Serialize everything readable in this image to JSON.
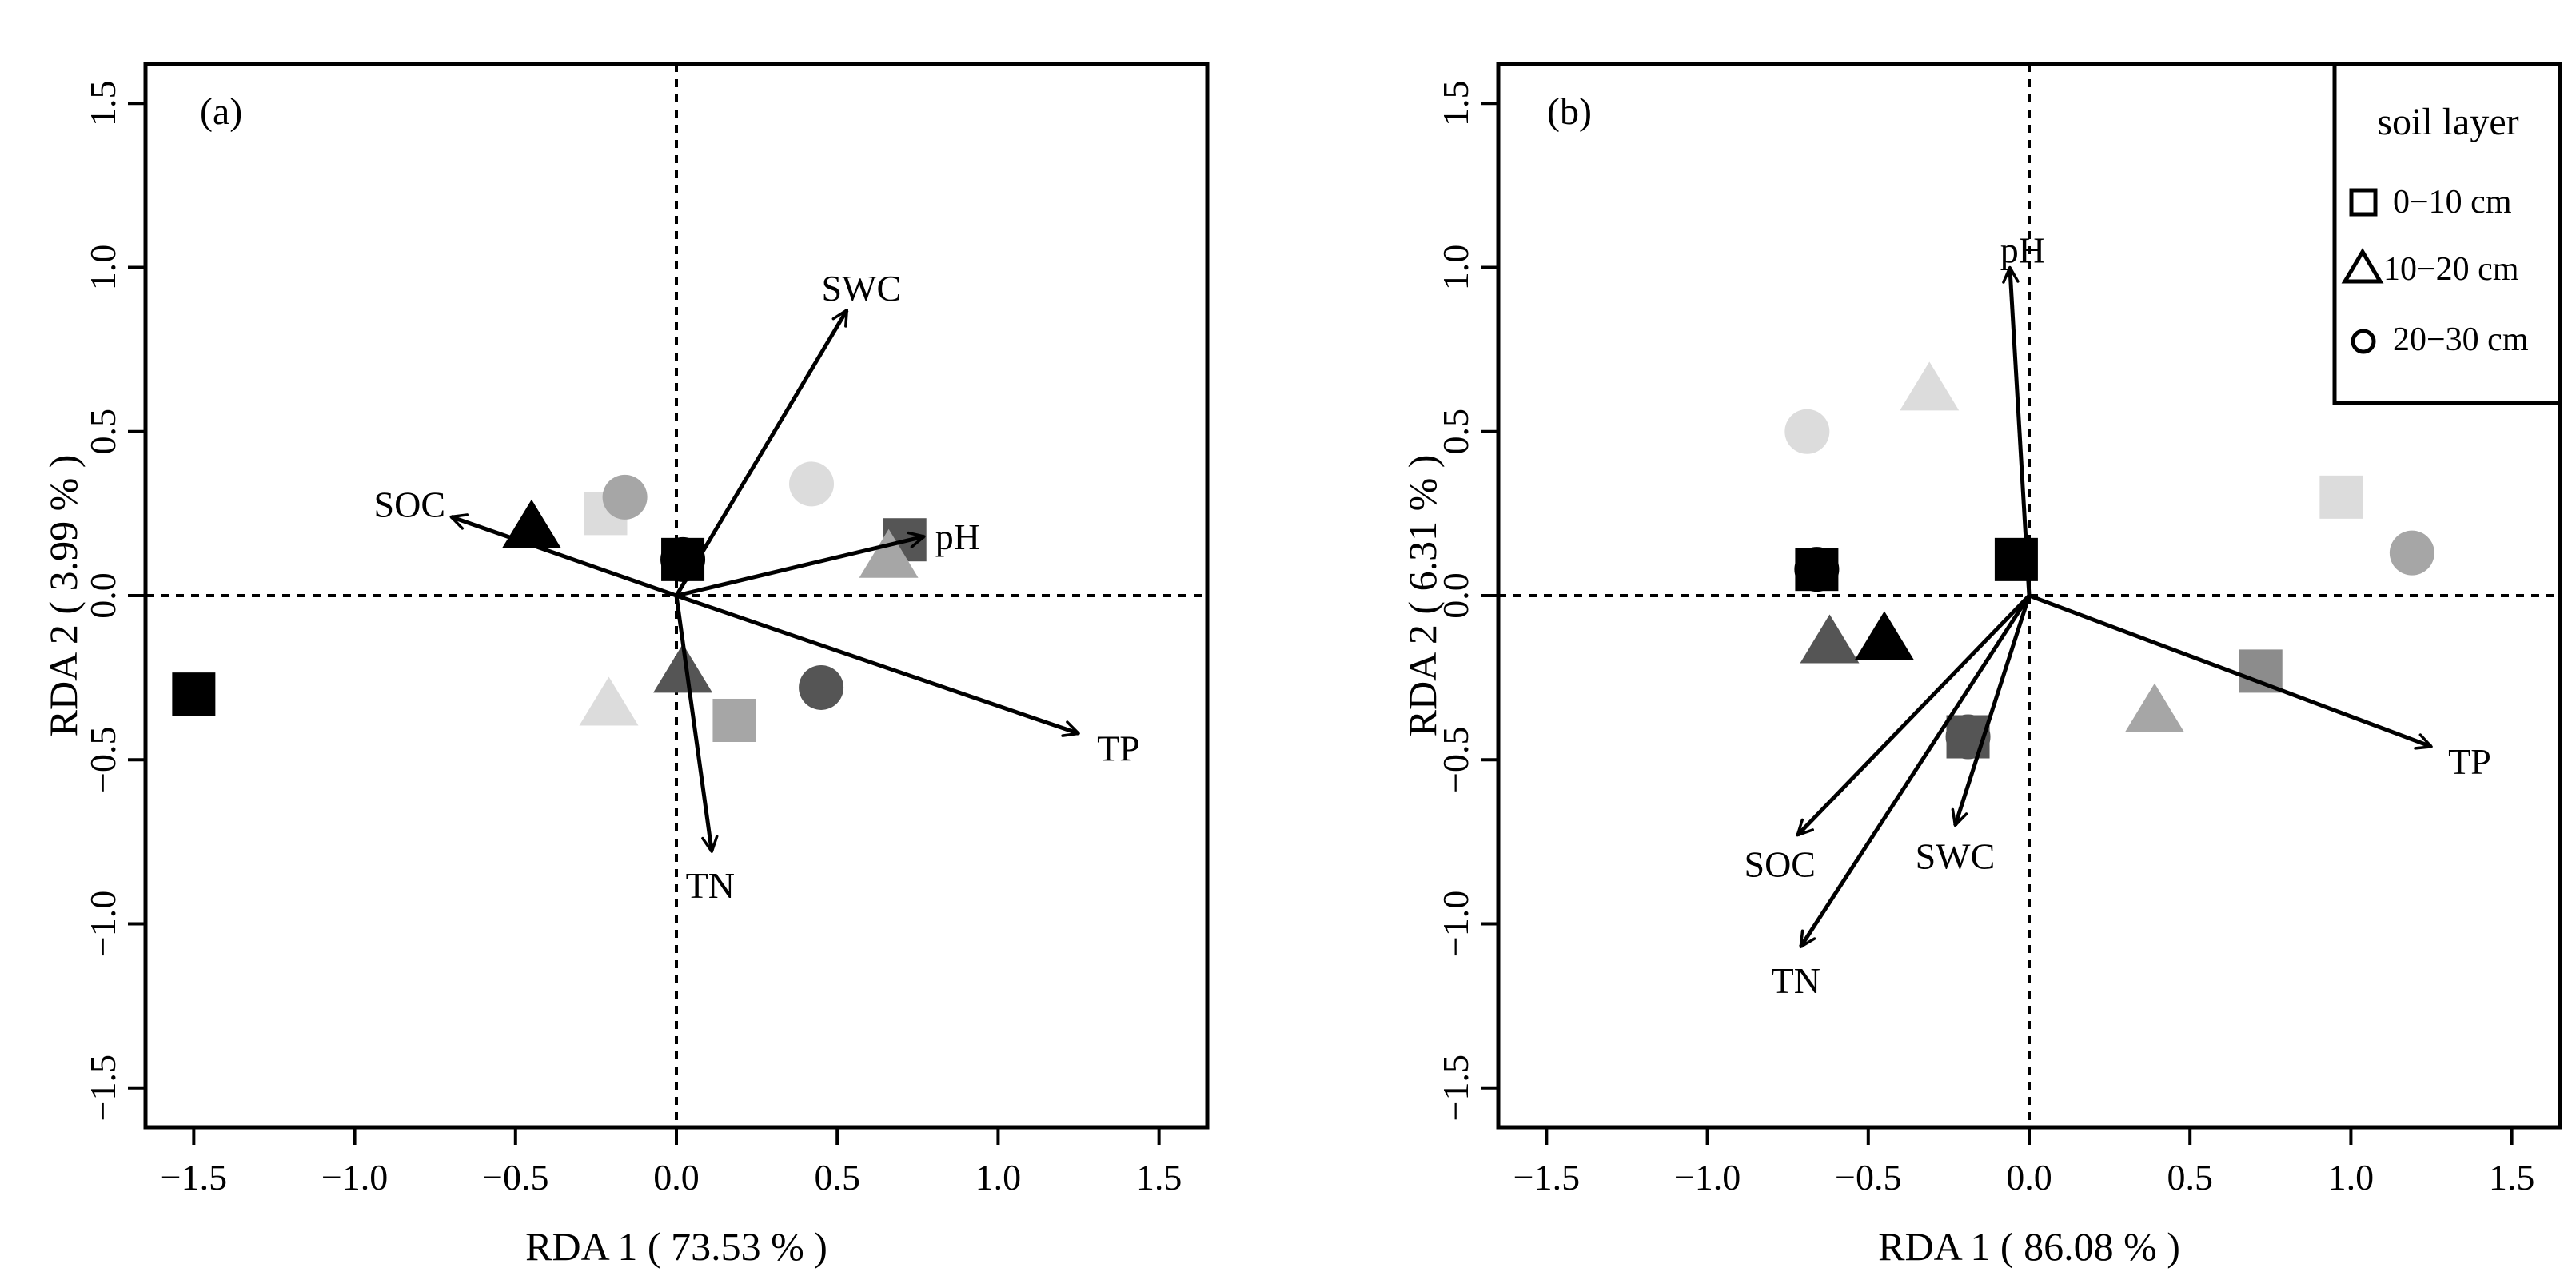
{
  "colors": {
    "black": "#000000",
    "dark_gray": "#555555",
    "mid_gray": "#8c8c8c",
    "light_gray": "#a6a6a6",
    "pale_gray": "#dcdcdc"
  },
  "legend": {
    "title": "soil layer",
    "items": [
      {
        "label": "0−10 cm",
        "shape": "square"
      },
      {
        "label": "10−20 cm",
        "shape": "triangle"
      },
      {
        "label": "20−30 cm",
        "shape": "circle"
      }
    ]
  },
  "chart_data": [
    {
      "type": "scatter",
      "panel_label": "(a)",
      "xlabel": "RDA 1  ( 73.53 % )",
      "ylabel": "RDA 2  ( 3.99 % )",
      "xlim": [
        -1.65,
        1.65
      ],
      "ylim": [
        -1.62,
        1.62
      ],
      "x_ticks": [
        -1.5,
        -1.0,
        -0.5,
        0.0,
        0.5,
        1.0,
        1.5
      ],
      "x_tick_labels": [
        "−1.5",
        "−1.0",
        "−0.5",
        "0.0",
        "0.5",
        "1.0",
        "1.5"
      ],
      "y_ticks": [
        -1.5,
        -1.0,
        -0.5,
        0.0,
        0.5,
        1.0,
        1.5
      ],
      "y_tick_labels": [
        "−1.5",
        "−1.0",
        "−0.5",
        "0.0",
        "0.5",
        "1.0",
        "1.5"
      ],
      "reference_lines": {
        "x": 0,
        "y": 0,
        "style": "dotted"
      },
      "arrows": [
        {
          "label": "SWC",
          "x": 0.53,
          "y": 0.87
        },
        {
          "label": "SOC",
          "x": -0.7,
          "y": 0.24
        },
        {
          "label": "pH",
          "x": 0.77,
          "y": 0.18
        },
        {
          "label": "TP",
          "x": 1.25,
          "y": -0.42
        },
        {
          "label": "TN",
          "x": 0.11,
          "y": -0.78
        }
      ],
      "points": [
        {
          "x": 0.02,
          "y": 0.11,
          "shape": "square",
          "color": "black"
        },
        {
          "x": 0.02,
          "y": 0.11,
          "shape": "circle",
          "color": "black"
        },
        {
          "x": -0.45,
          "y": 0.21,
          "shape": "triangle",
          "color": "black"
        },
        {
          "x": -1.5,
          "y": -0.3,
          "shape": "square",
          "color": "black"
        },
        {
          "x": -0.22,
          "y": 0.25,
          "shape": "square",
          "color": "pale_gray"
        },
        {
          "x": -0.16,
          "y": 0.3,
          "shape": "circle",
          "color": "light_gray"
        },
        {
          "x": 0.42,
          "y": 0.34,
          "shape": "circle",
          "color": "pale_gray"
        },
        {
          "x": 0.71,
          "y": 0.17,
          "shape": "square",
          "color": "dark_gray"
        },
        {
          "x": 0.66,
          "y": 0.12,
          "shape": "triangle",
          "color": "light_gray"
        },
        {
          "x": -0.21,
          "y": -0.33,
          "shape": "triangle",
          "color": "pale_gray"
        },
        {
          "x": 0.02,
          "y": -0.23,
          "shape": "triangle",
          "color": "dark_gray"
        },
        {
          "x": 0.18,
          "y": -0.38,
          "shape": "square",
          "color": "light_gray"
        },
        {
          "x": 0.45,
          "y": -0.28,
          "shape": "circle",
          "color": "dark_gray"
        }
      ]
    },
    {
      "type": "scatter",
      "panel_label": "(b)",
      "xlabel": "RDA 1  ( 86.08 % )",
      "ylabel": "RDA 2  ( 6.31 % )",
      "xlim": [
        -1.65,
        1.65
      ],
      "ylim": [
        -1.62,
        1.62
      ],
      "x_ticks": [
        -1.5,
        -1.0,
        -0.5,
        0.0,
        0.5,
        1.0,
        1.5
      ],
      "x_tick_labels": [
        "−1.5",
        "−1.0",
        "−0.5",
        "0.0",
        "0.5",
        "1.0",
        "1.5"
      ],
      "y_ticks": [
        -1.5,
        -1.0,
        -0.5,
        0.0,
        0.5,
        1.0,
        1.5
      ],
      "y_tick_labels": [
        "−1.5",
        "−1.0",
        "−0.5",
        "0.0",
        "0.5",
        "1.0",
        "1.5"
      ],
      "reference_lines": {
        "x": 0,
        "y": 0,
        "style": "dotted"
      },
      "arrows": [
        {
          "label": "pH",
          "x": -0.06,
          "y": 1.0
        },
        {
          "label": "TP",
          "x": 1.25,
          "y": -0.46
        },
        {
          "label": "SOC",
          "x": -0.72,
          "y": -0.73
        },
        {
          "label": "SWC",
          "x": -0.23,
          "y": -0.7
        },
        {
          "label": "TN",
          "x": -0.71,
          "y": -1.07
        }
      ],
      "points": [
        {
          "x": -0.04,
          "y": 0.11,
          "shape": "square",
          "color": "black"
        },
        {
          "x": -0.66,
          "y": 0.08,
          "shape": "square",
          "color": "black"
        },
        {
          "x": -0.66,
          "y": 0.08,
          "shape": "circle",
          "color": "black"
        },
        {
          "x": -0.69,
          "y": 0.5,
          "shape": "circle",
          "color": "pale_gray"
        },
        {
          "x": -0.31,
          "y": 0.63,
          "shape": "triangle",
          "color": "pale_gray"
        },
        {
          "x": 0.97,
          "y": 0.3,
          "shape": "square",
          "color": "pale_gray"
        },
        {
          "x": 1.19,
          "y": 0.13,
          "shape": "circle",
          "color": "light_gray"
        },
        {
          "x": -0.62,
          "y": -0.14,
          "shape": "triangle",
          "color": "dark_gray"
        },
        {
          "x": -0.45,
          "y": -0.13,
          "shape": "triangle",
          "color": "black"
        },
        {
          "x": -0.19,
          "y": -0.43,
          "shape": "circle",
          "color": "dark_gray"
        },
        {
          "x": -0.19,
          "y": -0.43,
          "shape": "square",
          "color": "dark_gray"
        },
        {
          "x": 0.39,
          "y": -0.35,
          "shape": "triangle",
          "color": "light_gray"
        },
        {
          "x": 0.72,
          "y": -0.23,
          "shape": "square",
          "color": "mid_gray"
        }
      ]
    }
  ]
}
